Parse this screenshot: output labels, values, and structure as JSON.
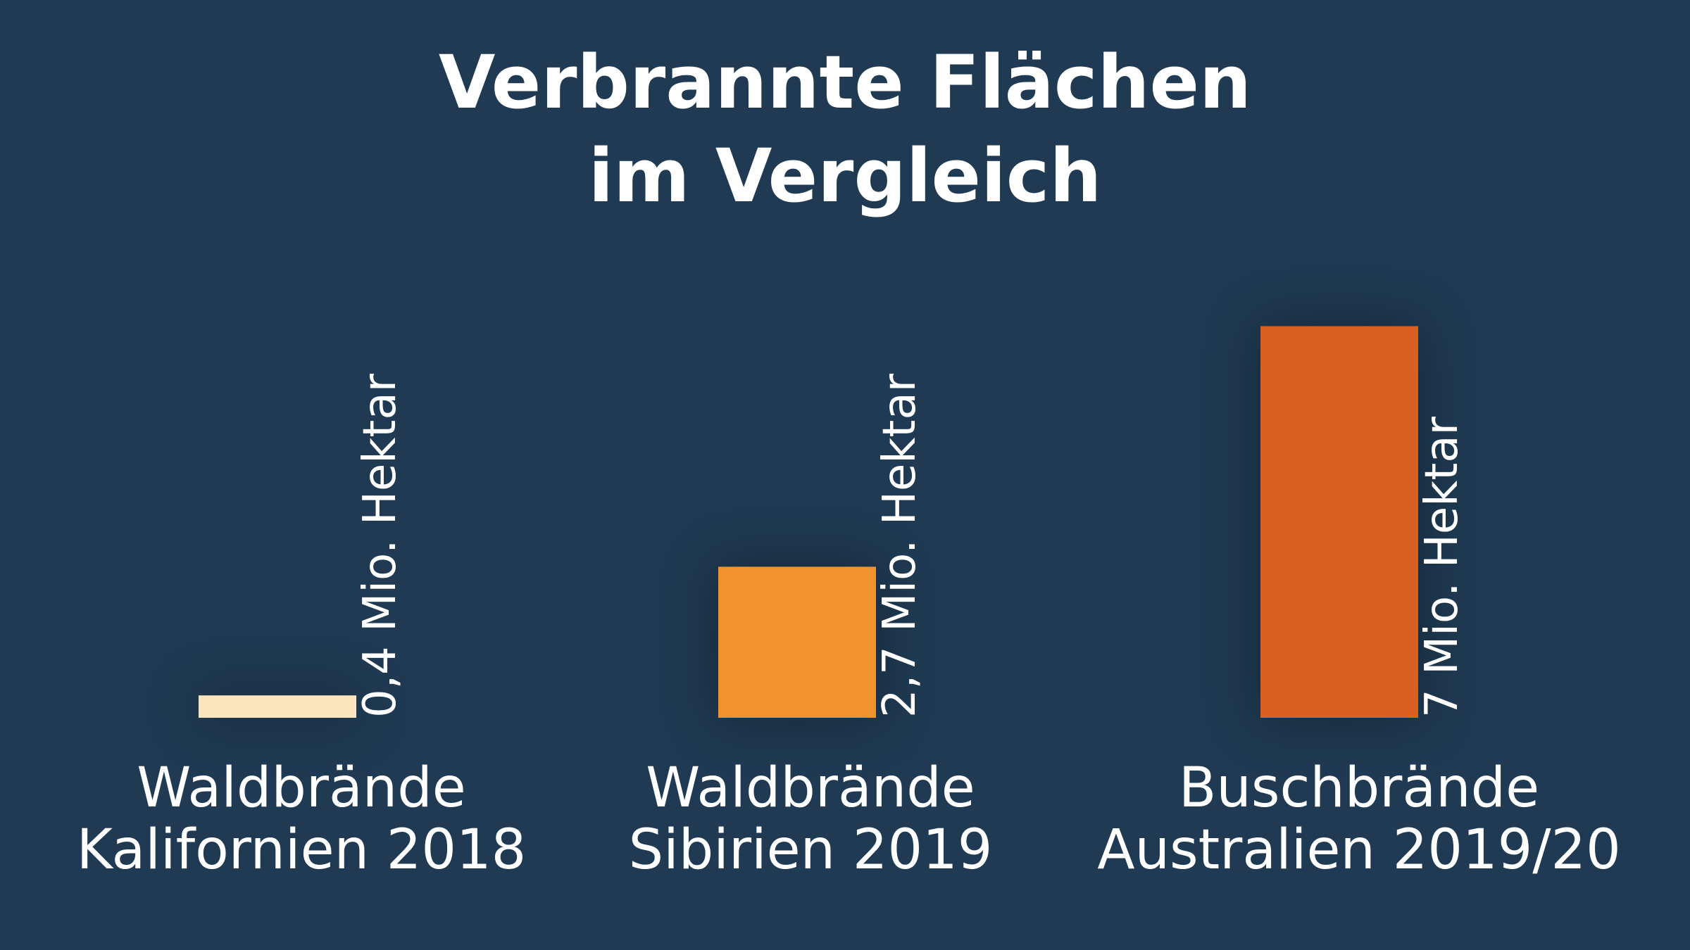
{
  "title_line1": "Verbrannte Flächen",
  "title_line2": "im Vergleich",
  "chart_data": {
    "type": "bar",
    "title": "Verbrannte Flächen im Vergleich",
    "unit": "Mio. Hektar",
    "categories": [
      [
        "Waldbrände",
        "Kalifornien 2018"
      ],
      [
        "Waldbrände",
        "Sibirien 2019"
      ],
      [
        "Buschbrände",
        "Australien 2019/20"
      ]
    ],
    "values": [
      0.4,
      2.7,
      7
    ],
    "value_labels": [
      "0,4 Mio. Hektar",
      "2,7 Mio. Hektar",
      "7 Mio. Hektar"
    ],
    "colors": [
      "#fbe6bf",
      "#f0922f",
      "#da6021"
    ]
  }
}
